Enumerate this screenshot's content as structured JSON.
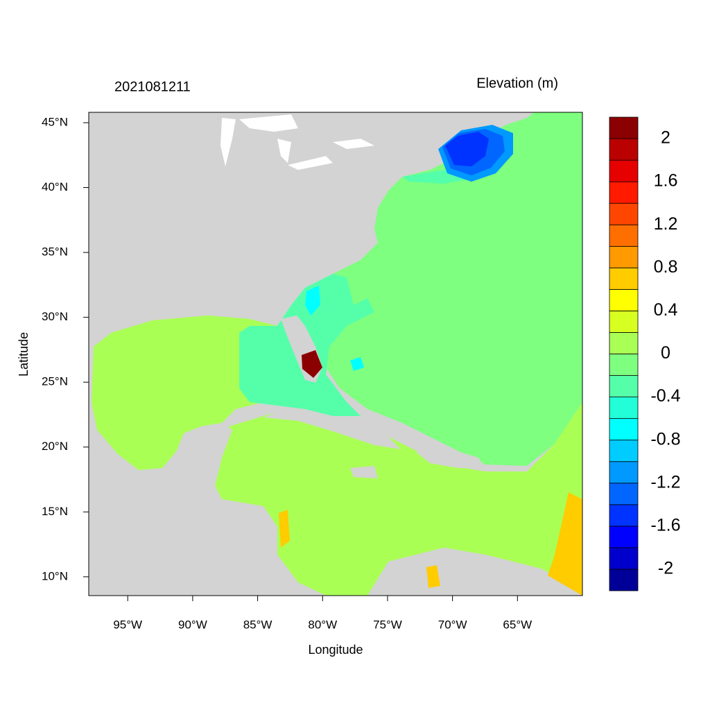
{
  "title": "2021081211",
  "legend_title": "Elevation (m)",
  "x_label": "Longitude",
  "y_label": "Latitude",
  "xlim": [
    -98,
    -60
  ],
  "ylim": [
    8.55,
    45.8
  ],
  "xticks": [
    {
      "value": -95,
      "label": "95°W"
    },
    {
      "value": -90,
      "label": "90°W"
    },
    {
      "value": -85,
      "label": "85°W"
    },
    {
      "value": -80,
      "label": "80°W"
    },
    {
      "value": -75,
      "label": "75°W"
    },
    {
      "value": -70,
      "label": "70°W"
    },
    {
      "value": -65,
      "label": "65°W"
    }
  ],
  "yticks": [
    {
      "value": 10,
      "label": "10°N"
    },
    {
      "value": 15,
      "label": "15°N"
    },
    {
      "value": 20,
      "label": "20°N"
    },
    {
      "value": 25,
      "label": "25°N"
    },
    {
      "value": 30,
      "label": "30°N"
    },
    {
      "value": 35,
      "label": "35°N"
    },
    {
      "value": 40,
      "label": "40°N"
    },
    {
      "value": 45,
      "label": "45°N"
    }
  ],
  "colorbar": {
    "range": [
      -2.2,
      2.2
    ],
    "colors": [
      "#000099",
      "#0000cc",
      "#0000ff",
      "#0033ff",
      "#0066ff",
      "#0099ff",
      "#00ccff",
      "#00ffff",
      "#22ffd8",
      "#55ffaa",
      "#7fff7f",
      "#aaff55",
      "#d8ff22",
      "#ffff00",
      "#ffcc00",
      "#ff9a00",
      "#ff6f00",
      "#ff4600",
      "#ff1a00",
      "#e60000",
      "#bb0000",
      "#8b0000"
    ],
    "ticks": [
      -2,
      -1.6,
      -1.2,
      -0.8,
      -0.4,
      0,
      0.4,
      0.8,
      1.2,
      1.6,
      2
    ]
  }
}
